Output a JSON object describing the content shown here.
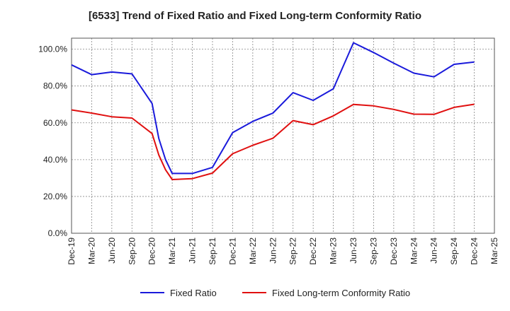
{
  "chart_data": {
    "type": "line",
    "title": "[6533]  Trend of Fixed Ratio and Fixed Long-term Conformity Ratio",
    "xlabel": "",
    "ylabel": "",
    "ylim": [
      0,
      106
    ],
    "yticks": [
      0,
      20,
      40,
      60,
      80,
      100
    ],
    "ytick_labels": [
      "0.0%",
      "20.0%",
      "40.0%",
      "60.0%",
      "80.0%",
      "100.0%"
    ],
    "xtick_labels": [
      "Dec-19",
      "Mar-20",
      "Jun-20",
      "Sep-20",
      "Dec-20",
      "Mar-21",
      "Jun-21",
      "Sep-21",
      "Dec-21",
      "Mar-22",
      "Jun-22",
      "Sep-22",
      "Dec-22",
      "Mar-23",
      "Jun-23",
      "Sep-23",
      "Dec-23",
      "Mar-24",
      "Jun-24",
      "Sep-24",
      "Dec-24",
      "Mar-25"
    ],
    "grid": true,
    "legend_position": "bottom",
    "series": [
      {
        "name": "Fixed Ratio",
        "color": "#1a1adb",
        "points": [
          {
            "x": "Dec-19",
            "y": 91.5
          },
          {
            "x": "Mar-20",
            "y": 86.2
          },
          {
            "x": "Jun-20",
            "y": 87.6
          },
          {
            "x": "Sep-20",
            "y": 86.6
          },
          {
            "x": "Dec-20",
            "y": 70.5
          },
          {
            "x": "Jan-21",
            "y": 51.5
          },
          {
            "x": "Feb-21",
            "y": 40.0
          },
          {
            "x": "Mar-21",
            "y": 32.5
          },
          {
            "x": "Jun-21",
            "y": 32.5
          },
          {
            "x": "Sep-21",
            "y": 35.8
          },
          {
            "x": "Dec-21",
            "y": 54.7
          },
          {
            "x": "Mar-22",
            "y": 60.8
          },
          {
            "x": "Jun-22",
            "y": 65.3
          },
          {
            "x": "Sep-22",
            "y": 76.4
          },
          {
            "x": "Dec-22",
            "y": 72.2
          },
          {
            "x": "Mar-23",
            "y": 78.5
          },
          {
            "x": "Jun-23",
            "y": 103.5
          },
          {
            "x": "Sep-23",
            "y": 98.2
          },
          {
            "x": "Dec-23",
            "y": 92.4
          },
          {
            "x": "Mar-24",
            "y": 87.0
          },
          {
            "x": "Jun-24",
            "y": 85.0
          },
          {
            "x": "Sep-24",
            "y": 91.8
          },
          {
            "x": "Dec-24",
            "y": 93.0
          }
        ]
      },
      {
        "name": "Fixed Long-term Conformity Ratio",
        "color": "#e01010",
        "points": [
          {
            "x": "Dec-19",
            "y": 67.0
          },
          {
            "x": "Mar-20",
            "y": 65.3
          },
          {
            "x": "Jun-20",
            "y": 63.3
          },
          {
            "x": "Sep-20",
            "y": 62.6
          },
          {
            "x": "Dec-20",
            "y": 54.2
          },
          {
            "x": "Jan-21",
            "y": 42.5
          },
          {
            "x": "Feb-21",
            "y": 34.5
          },
          {
            "x": "Mar-21",
            "y": 29.2
          },
          {
            "x": "Jun-21",
            "y": 29.7
          },
          {
            "x": "Sep-21",
            "y": 32.7
          },
          {
            "x": "Dec-21",
            "y": 43.2
          },
          {
            "x": "Mar-22",
            "y": 47.8
          },
          {
            "x": "Jun-22",
            "y": 51.6
          },
          {
            "x": "Sep-22",
            "y": 61.2
          },
          {
            "x": "Dec-22",
            "y": 59.0
          },
          {
            "x": "Mar-23",
            "y": 63.8
          },
          {
            "x": "Jun-23",
            "y": 70.0
          },
          {
            "x": "Sep-23",
            "y": 69.2
          },
          {
            "x": "Dec-23",
            "y": 67.3
          },
          {
            "x": "Mar-24",
            "y": 64.7
          },
          {
            "x": "Jun-24",
            "y": 64.6
          },
          {
            "x": "Sep-24",
            "y": 68.4
          },
          {
            "x": "Dec-24",
            "y": 70.1
          }
        ]
      }
    ]
  }
}
